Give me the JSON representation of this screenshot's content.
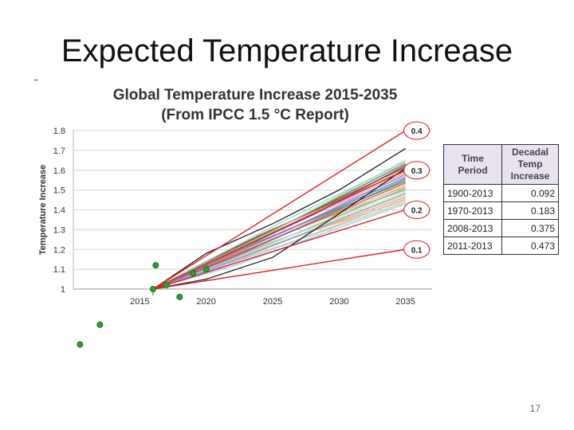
{
  "slide": {
    "title": "Expected Temperature Increase",
    "page_number": "17"
  },
  "chart_data": {
    "type": "line",
    "title": "Global Temperature Increase 2015-2035",
    "subtitle": "(From IPCC 1.5 °C Report)",
    "xlabel": "",
    "ylabel": "Temperature Increase",
    "xlim": [
      2010,
      2037
    ],
    "ylim": [
      1.0,
      1.8
    ],
    "x_ticks": [
      2015,
      2020,
      2025,
      2030,
      2035
    ],
    "y_ticks": [
      1,
      1.1,
      1.2,
      1.3,
      1.4,
      1.5,
      1.6,
      1.7,
      1.8
    ],
    "grid": true,
    "reference_lines": [
      {
        "label": "0.4",
        "color": "#e02020",
        "points": [
          [
            2016,
            1.0
          ],
          [
            2035,
            1.8
          ]
        ]
      },
      {
        "label": "0.3",
        "color": "#e02020",
        "points": [
          [
            2016,
            1.0
          ],
          [
            2035,
            1.6
          ]
        ]
      },
      {
        "label": "0.2",
        "color": "#e02020",
        "points": [
          [
            2016,
            1.0
          ],
          [
            2035,
            1.4
          ]
        ]
      },
      {
        "label": "0.1",
        "color": "#e02020",
        "points": [
          [
            2016,
            1.0
          ],
          [
            2035,
            1.2
          ]
        ]
      }
    ],
    "projections": [
      {
        "color": "#222222",
        "points": [
          [
            2016,
            1.0
          ],
          [
            2020,
            1.18
          ],
          [
            2025,
            1.33
          ],
          [
            2030,
            1.5
          ],
          [
            2035,
            1.71
          ]
        ]
      },
      {
        "color": "#222222",
        "points": [
          [
            2016,
            1.0
          ],
          [
            2020,
            1.05
          ],
          [
            2025,
            1.16
          ],
          [
            2030,
            1.38
          ],
          [
            2035,
            1.61
          ]
        ]
      }
    ],
    "ensemble_band": {
      "start": [
        2016,
        1.0
      ],
      "end_range": [
        2035,
        1.43,
        1.65
      ]
    },
    "observed": {
      "color": "#2ca02c",
      "points": [
        [
          2010.5,
          0.72
        ],
        [
          2012,
          0.82
        ],
        [
          2016,
          1.0
        ],
        [
          2016.2,
          1.12
        ],
        [
          2017,
          1.02
        ],
        [
          2018,
          0.96
        ],
        [
          2019,
          1.08
        ],
        [
          2020,
          1.1
        ]
      ]
    }
  },
  "table": {
    "headers": [
      "Time Period",
      "Decadal Temp Increase"
    ],
    "rows": [
      [
        "1900-2013",
        "0.092"
      ],
      [
        "1970-2013",
        "0.183"
      ],
      [
        "2008-2013",
        "0.375"
      ],
      [
        "2011-2013",
        "0.473"
      ]
    ]
  }
}
